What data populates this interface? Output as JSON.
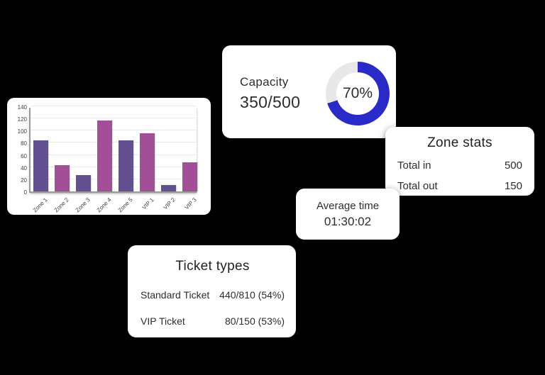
{
  "background_color": "#000000",
  "chart_data": {
    "type": "bar",
    "title": "",
    "categories": [
      "Zone 1",
      "Zone 2",
      "Zone 3",
      "Zone 4",
      "Zone 5",
      "VIP 1",
      "VIP 2",
      "VIP 3"
    ],
    "values": [
      84,
      43,
      27,
      117,
      84,
      96,
      11,
      48
    ],
    "y_ticks": [
      0,
      20,
      40,
      60,
      80,
      100,
      120,
      140
    ],
    "ylim": [
      0,
      140
    ],
    "grid": true,
    "legend": false,
    "xlabel": "",
    "ylabel": "",
    "bar_colors_alternating": [
      "#635091",
      "#a34f98"
    ],
    "axis_label_color": "#3c3c3c"
  },
  "capacity": {
    "title": "Capacity",
    "value_text": "350/500",
    "percent": 70,
    "percent_label": "70%",
    "ring_color": "#2a2ac8",
    "track_color": "#e8e8e8"
  },
  "zone_stats": {
    "title": "Zone stats",
    "rows": [
      {
        "label": "Total in",
        "value": "500"
      },
      {
        "label": "Total out",
        "value": "150"
      }
    ]
  },
  "average_time": {
    "title": "Average time",
    "value": "01:30:02"
  },
  "ticket_types": {
    "title": "Ticket types",
    "rows": [
      {
        "label": "Standard Ticket",
        "value": "440/810 (54%)"
      },
      {
        "label": "VIP Ticket",
        "value": "80/150 (53%)"
      }
    ]
  }
}
